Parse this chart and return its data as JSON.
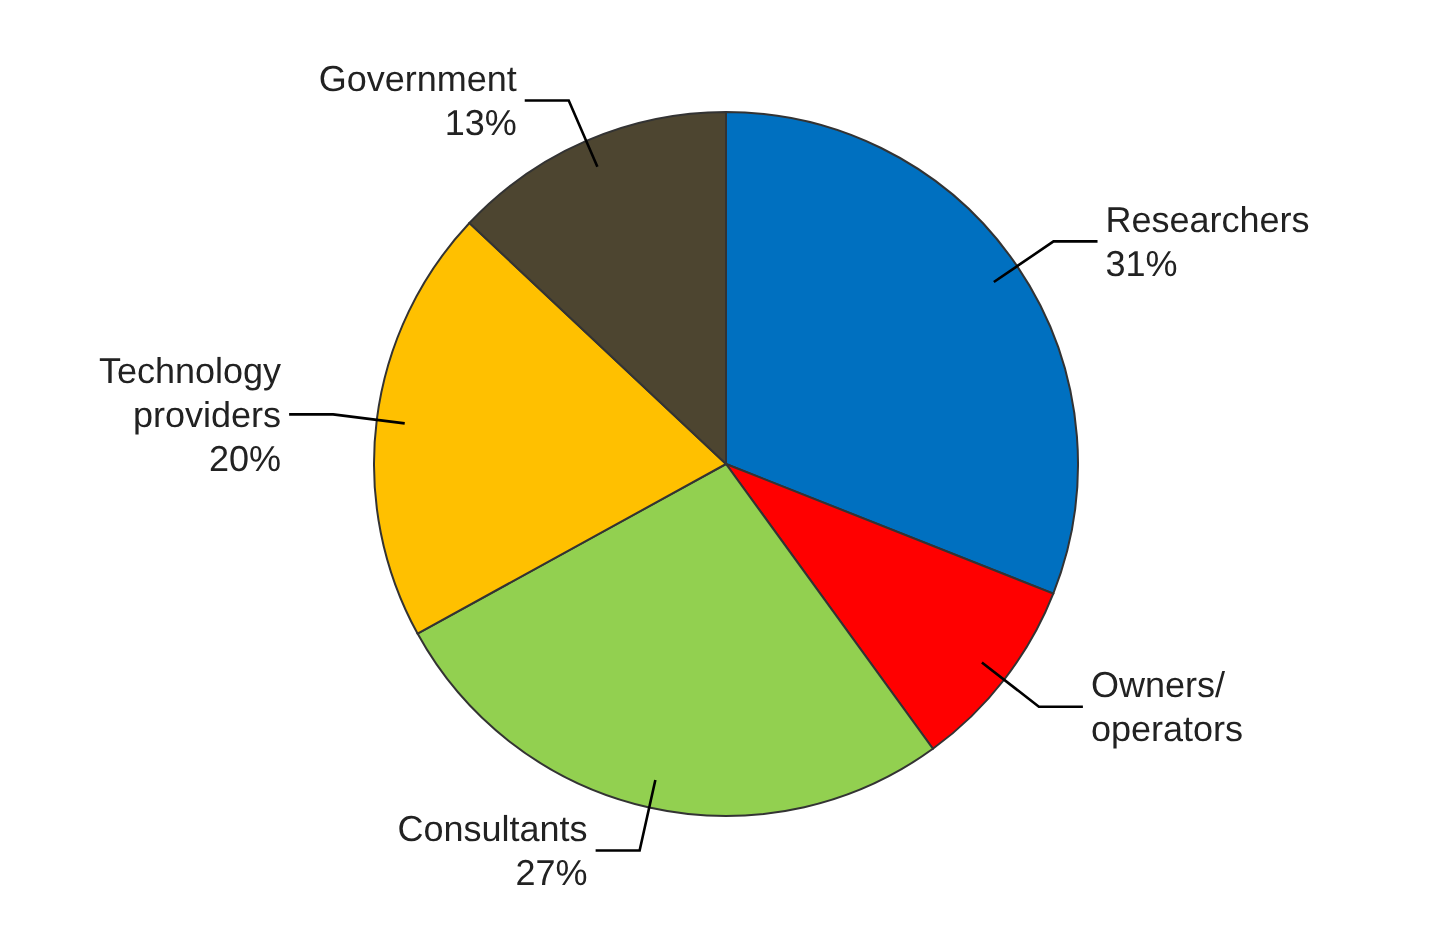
{
  "chart_data": {
    "type": "pie",
    "categories": [
      "Researchers",
      "Owners/operators",
      "Consultants",
      "Technology providers",
      "Government"
    ],
    "values": [
      31,
      9,
      27,
      20,
      13
    ],
    "colors": [
      "#0070c0",
      "#ff0000",
      "#92d050",
      "#ffc000",
      "#4d4530"
    ],
    "value_labels": [
      "31%",
      null,
      "27%",
      "20%",
      "13%"
    ]
  }
}
